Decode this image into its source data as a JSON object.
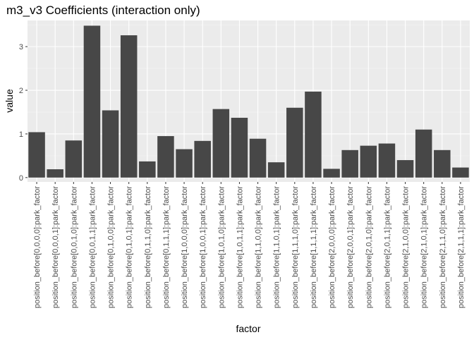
{
  "chart_data": {
    "type": "bar",
    "title": "m3_v3 Coefficients (interaction only)",
    "xlabel": "factor",
    "ylabel": "value",
    "ylim": [
      -0.1,
      3.6
    ],
    "yticks": [
      0,
      1,
      2,
      3
    ],
    "grid": true,
    "legend": "none",
    "categories": [
      "position_before[0,0,0,0]:park_factor",
      "position_before[0,0,0,1]:park_factor",
      "position_before[0,0,1,0]:park_factor",
      "position_before[0,0,1,1]:park_factor",
      "position_before[0,1,0,0]:park_factor",
      "position_before[0,1,0,1]:park_factor",
      "position_before[0,1,1,0]:park_factor",
      "position_before[0,1,1,1]:park_factor",
      "position_before[1,0,0,0]:park_factor",
      "position_before[1,0,0,1]:park_factor",
      "position_before[1,0,1,0]:park_factor",
      "position_before[1,0,1,1]:park_factor",
      "position_before[1,1,0,0]:park_factor",
      "position_before[1,1,0,1]:park_factor",
      "position_before[1,1,1,0]:park_factor",
      "position_before[1,1,1,1]:park_factor",
      "position_before[2,0,0,0]:park_factor",
      "position_before[2,0,0,1]:park_factor",
      "position_before[2,0,1,0]:park_factor",
      "position_before[2,0,1,1]:park_factor",
      "position_before[2,1,0,0]:park_factor",
      "position_before[2,1,0,1]:park_factor",
      "position_before[2,1,1,0]:park_factor",
      "position_before[2,1,1,1]:park_factor"
    ],
    "values": [
      1.04,
      0.19,
      0.85,
      3.48,
      1.54,
      3.26,
      0.37,
      0.95,
      0.65,
      0.84,
      1.57,
      1.37,
      0.89,
      0.35,
      1.6,
      1.97,
      0.2,
      0.63,
      0.73,
      0.78,
      0.4,
      1.1,
      0.63,
      0.23
    ],
    "colors": {
      "panel_background": "#ebebeb",
      "grid_major": "#ffffff",
      "grid_minor": "#f5f5f5",
      "bar_fill": "#474747",
      "tick_color": "#333333"
    }
  }
}
